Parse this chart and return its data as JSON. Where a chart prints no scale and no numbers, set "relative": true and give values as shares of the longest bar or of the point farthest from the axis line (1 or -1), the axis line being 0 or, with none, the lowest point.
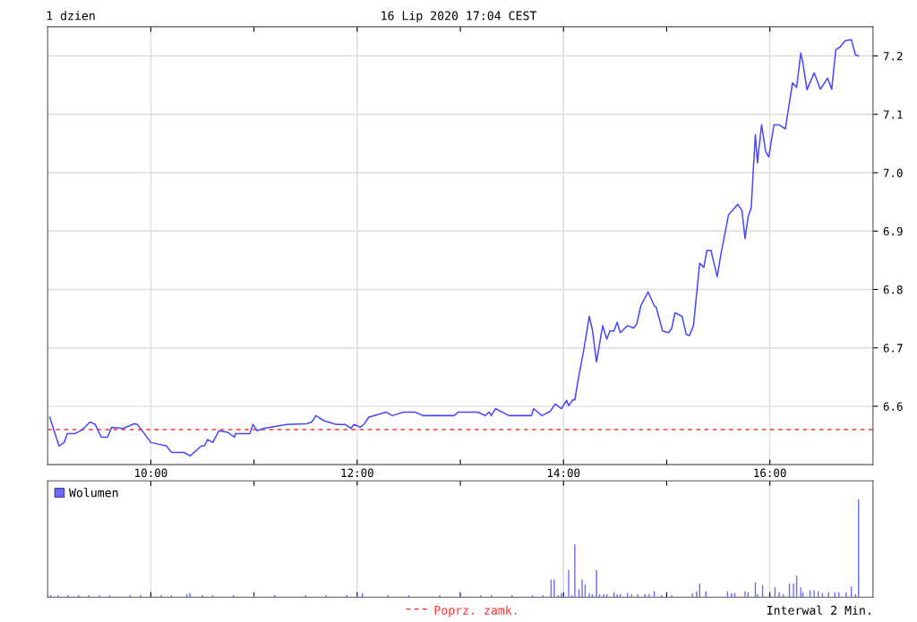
{
  "chart_data": [
    {
      "type": "line",
      "title": "1 dzien",
      "subtitle": "16 Lip 2020 17:04 CEST",
      "x": [
        9.02,
        9.11,
        9.16,
        9.19,
        9.26,
        9.33,
        9.41,
        9.46,
        9.52,
        9.58,
        9.62,
        9.73,
        9.84,
        9.87,
        10.0,
        10.15,
        10.2,
        10.32,
        10.38,
        10.49,
        10.52,
        10.55,
        10.6,
        10.66,
        10.75,
        10.81,
        10.82,
        10.96,
        10.99,
        11.03,
        11.09,
        11.32,
        11.51,
        11.56,
        11.6,
        11.68,
        11.8,
        11.88,
        11.94,
        11.97,
        12.03,
        12.07,
        12.11,
        12.28,
        12.34,
        12.45,
        12.56,
        12.64,
        12.94,
        12.98,
        13.17,
        13.24,
        13.28,
        13.3,
        13.34,
        13.47,
        13.69,
        13.71,
        13.79,
        13.87,
        13.92,
        13.98,
        14.03,
        14.05,
        14.09,
        14.11,
        14.15,
        14.2,
        14.25,
        14.28,
        14.32,
        14.38,
        14.42,
        14.45,
        14.49,
        14.52,
        14.55,
        14.62,
        14.68,
        14.71,
        14.75,
        14.82,
        14.88,
        14.9,
        14.96,
        15.02,
        15.05,
        15.08,
        15.15,
        15.19,
        15.22,
        15.26,
        15.32,
        15.36,
        15.39,
        15.43,
        15.49,
        15.53,
        15.6,
        15.69,
        15.73,
        15.76,
        15.79,
        15.82,
        15.84,
        15.86,
        15.88,
        15.92,
        15.96,
        15.99,
        16.04,
        16.09,
        16.15,
        16.22,
        16.26,
        16.3,
        16.32,
        16.36,
        16.43,
        16.49,
        16.56,
        16.6,
        16.64,
        16.68,
        16.73,
        16.79,
        16.83,
        16.86
      ],
      "series": [
        {
          "color": "#4848ff",
          "values": [
            6.581,
            6.532,
            6.538,
            6.553,
            6.553,
            6.559,
            6.573,
            6.569,
            6.547,
            6.547,
            6.564,
            6.562,
            6.57,
            6.569,
            6.538,
            6.532,
            6.521,
            6.521,
            6.515,
            6.532,
            6.532,
            6.543,
            6.538,
            6.558,
            6.555,
            6.547,
            6.553,
            6.553,
            6.569,
            6.558,
            6.562,
            6.569,
            6.57,
            6.573,
            6.584,
            6.575,
            6.569,
            6.569,
            6.562,
            6.569,
            6.564,
            6.57,
            6.581,
            6.59,
            6.584,
            6.59,
            6.59,
            6.584,
            6.584,
            6.59,
            6.59,
            6.584,
            6.59,
            6.584,
            6.596,
            6.584,
            6.584,
            6.596,
            6.584,
            6.591,
            6.604,
            6.596,
            6.61,
            6.601,
            6.611,
            6.611,
            6.653,
            6.7,
            6.754,
            6.731,
            6.676,
            6.738,
            6.715,
            6.729,
            6.729,
            6.744,
            6.726,
            6.738,
            6.734,
            6.741,
            6.772,
            6.796,
            6.772,
            6.769,
            6.729,
            6.726,
            6.734,
            6.76,
            6.754,
            6.723,
            6.721,
            6.738,
            6.845,
            6.838,
            6.867,
            6.867,
            6.822,
            6.864,
            6.928,
            6.946,
            6.935,
            6.887,
            6.925,
            6.94,
            7.006,
            7.065,
            7.017,
            7.082,
            7.036,
            7.027,
            7.082,
            7.082,
            7.075,
            7.154,
            7.146,
            7.205,
            7.189,
            7.142,
            7.171,
            7.143,
            7.162,
            7.143,
            7.211,
            7.215,
            7.226,
            7.228,
            7.202,
            7.2
          ]
        }
      ],
      "xlim": [
        9,
        17
      ],
      "ylim": [
        6.5,
        7.25
      ],
      "xticks": [
        {
          "value": 10,
          "label": "10:00"
        },
        {
          "value": 11,
          "label": null
        },
        {
          "value": 12,
          "label": "12:00"
        },
        {
          "value": 13,
          "label": null
        },
        {
          "value": 14,
          "label": "14:00"
        },
        {
          "value": 15,
          "label": null
        },
        {
          "value": 16,
          "label": "16:00"
        }
      ],
      "yticks": [
        6.6,
        6.7,
        6.8,
        6.9,
        {
          "value": 7,
          "label": "7.0"
        },
        7.1,
        7.2
      ],
      "grid": true,
      "ref_lines": [
        {
          "axis": "y",
          "value": 6.56,
          "label": "Poprz. zamk.",
          "color": "#ff3030",
          "line_style": "dashed"
        }
      ],
      "annotations": [
        "Interwal 2 Min."
      ]
    },
    {
      "type": "bar",
      "relative": true,
      "series": [
        {
          "name": "Wolumen",
          "color": "#6a6aff",
          "x": [
            9.03,
            9.1,
            9.2,
            9.3,
            9.4,
            9.5,
            9.6,
            9.8,
            9.9,
            10.1,
            10.2,
            10.35,
            10.38,
            10.5,
            10.6,
            10.8,
            11.0,
            11.2,
            11.5,
            11.7,
            11.9,
            12.0,
            12.05,
            12.3,
            12.5,
            12.8,
            13.0,
            13.2,
            13.3,
            13.5,
            13.7,
            13.8,
            13.88,
            13.91,
            13.95,
            13.98,
            14.05,
            14.08,
            14.11,
            14.15,
            14.18,
            14.21,
            14.25,
            14.28,
            14.32,
            14.35,
            14.39,
            14.42,
            14.49,
            14.52,
            14.55,
            14.62,
            14.66,
            14.72,
            14.79,
            14.83,
            14.88,
            14.95,
            15.05,
            15.25,
            15.29,
            15.32,
            15.38,
            15.59,
            15.63,
            15.66,
            15.76,
            15.79,
            15.86,
            15.88,
            15.93,
            16.05,
            16.09,
            16.13,
            16.19,
            16.23,
            16.26,
            16.3,
            16.32,
            16.39,
            16.43,
            16.47,
            16.51,
            16.57,
            16.63,
            16.67,
            16.74,
            16.79,
            16.83,
            16.86
          ],
          "values": [
            0.02,
            0.02,
            0.02,
            0.02,
            0.02,
            0.02,
            0.02,
            0.02,
            0.02,
            0.02,
            0.02,
            0.03,
            0.04,
            0.02,
            0.02,
            0.02,
            0.02,
            0.02,
            0.02,
            0.02,
            0.02,
            0.03,
            0.04,
            0.02,
            0.02,
            0.02,
            0.02,
            0.02,
            0.02,
            0.02,
            0.02,
            0.02,
            0.18,
            0.18,
            0.02,
            0.04,
            0.28,
            0.02,
            0.54,
            0.08,
            0.18,
            0.13,
            0.04,
            0.03,
            0.28,
            0.03,
            0.03,
            0.03,
            0.05,
            0.03,
            0.03,
            0.04,
            0.03,
            0.03,
            0.03,
            0.03,
            0.06,
            0.02,
            0.02,
            0.04,
            0.06,
            0.14,
            0.06,
            0.06,
            0.04,
            0.04,
            0.06,
            0.05,
            0.15,
            0.03,
            0.12,
            0.1,
            0.05,
            0.03,
            0.14,
            0.14,
            0.22,
            0.1,
            0.05,
            0.07,
            0.07,
            0.06,
            0.04,
            0.05,
            0.05,
            0.05,
            0.05,
            0.11,
            0.03,
            1.0
          ]
        }
      ],
      "xlim": [
        9,
        17
      ],
      "xticks": [
        10,
        {
          "value": 11,
          "label": null
        },
        12,
        {
          "value": 13,
          "label": null
        },
        14,
        {
          "value": 15,
          "label": null
        },
        16
      ],
      "tick_labels": false,
      "grid": "x",
      "legend": "top left"
    }
  ]
}
